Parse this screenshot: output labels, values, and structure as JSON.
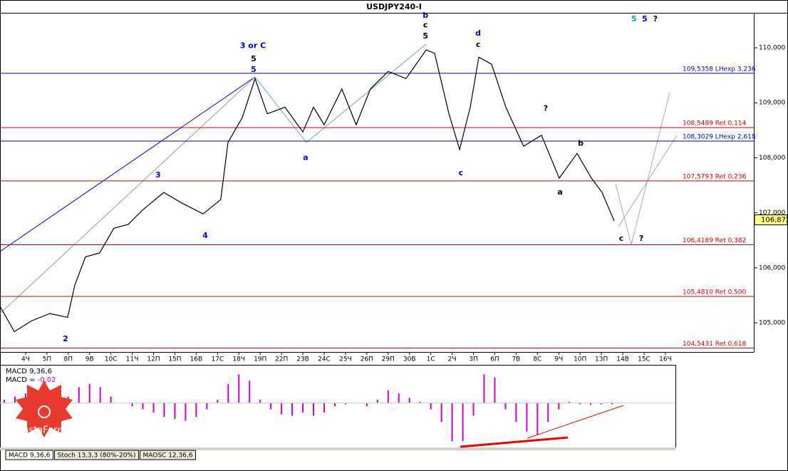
{
  "chart_data": {
    "type": "line",
    "title": "USDJPY240-I",
    "categories": [
      "4Ч",
      "5П",
      "8П",
      "9В",
      "10С",
      "11Ч",
      "12П",
      "15П",
      "16В",
      "17С",
      "18Ч",
      "19П",
      "22П",
      "23В",
      "24С",
      "25Ч",
      "26П",
      "29П",
      "30В",
      "1С",
      "2Ч",
      "3П",
      "6П",
      "7В",
      "8С",
      "9Ч",
      "10П",
      "13П",
      "14В",
      "15С",
      "16Ч"
    ],
    "xlim": [
      -1.2,
      30.47
    ],
    "ylim": [
      104.47,
      110.635
    ],
    "yticks": [
      {
        "value": 105,
        "label": "105,000"
      },
      {
        "value": 106,
        "label": "106,000"
      },
      {
        "value": 107,
        "label": "107,000"
      },
      {
        "value": 108,
        "label": "108,000"
      },
      {
        "value": 109,
        "label": "109,000"
      },
      {
        "value": 110,
        "label": "110,000"
      }
    ],
    "price": {
      "color": "#000000",
      "x": [
        -1.2,
        -0.53,
        0.3,
        1.14,
        1.97,
        2.31,
        2.81,
        3.47,
        4.14,
        4.81,
        5.48,
        6.48,
        7.32,
        8.32,
        9.15,
        9.49,
        10.16,
        10.76,
        11.33,
        12.16,
        13.0,
        13.5,
        14.0,
        14.83,
        15.5,
        16.17,
        17.0,
        17.84,
        18.78,
        19.18,
        19.85,
        20.35,
        20.85,
        21.25,
        21.85,
        22.52,
        23.35,
        24.19,
        25.02,
        25.86,
        26.53,
        27.03,
        27.6
      ],
      "values": [
        105.3,
        104.84,
        105.04,
        105.17,
        105.1,
        105.69,
        106.2,
        106.27,
        106.72,
        106.79,
        107.05,
        107.37,
        107.18,
        106.98,
        107.24,
        108.28,
        108.73,
        109.44,
        108.8,
        108.92,
        108.47,
        108.92,
        108.6,
        109.25,
        108.6,
        109.25,
        109.57,
        109.44,
        109.96,
        109.9,
        108.8,
        108.15,
        108.92,
        109.83,
        109.7,
        108.92,
        108.21,
        108.41,
        107.63,
        108.08,
        107.63,
        107.37,
        106.85
      ]
    },
    "current_price": {
      "value": 106.872,
      "label": "106,872"
    },
    "levels": [
      {
        "value": 109.5358,
        "label": "109,5358 LHexp 3,236",
        "color": "#0000aa"
      },
      {
        "value": 108.5489,
        "label": "108,5489 Ret 0,114",
        "color": "#cc0000"
      },
      {
        "value": 108.3029,
        "label": "108,3029 LHexp 2,618",
        "color": "#0000aa"
      },
      {
        "value": 107.5793,
        "label": "107,5793 Ret 0,236",
        "color": "#cc0000"
      },
      {
        "value": 106.4189,
        "label": "106,4189 Ret 0,382",
        "color": "#cc0000"
      },
      {
        "value": 105.481,
        "label": "105,4810 Ret 0,500",
        "color": "#cc0000"
      },
      {
        "value": 104.5431,
        "label": "104,5431 Ret 0,618",
        "color": "#cc0000"
      }
    ],
    "annotations": [
      {
        "text": "3 or C",
        "x": 10.66,
        "y": 110.03,
        "color": "#0000cc"
      },
      {
        "text": "5",
        "x": 10.69,
        "y": 109.79,
        "color": "#000000"
      },
      {
        "text": "5",
        "x": 10.69,
        "y": 109.6,
        "color": "#0000cc"
      },
      {
        "text": "b",
        "x": 18.75,
        "y": 110.58,
        "color": "#0000cc"
      },
      {
        "text": "c",
        "x": 18.75,
        "y": 110.41,
        "color": "#000000"
      },
      {
        "text": "5",
        "x": 18.75,
        "y": 110.21,
        "color": "#000000"
      },
      {
        "text": "d",
        "x": 21.22,
        "y": 110.26,
        "color": "#0000cc"
      },
      {
        "text": "c",
        "x": 21.22,
        "y": 110.05,
        "color": "#000000"
      },
      {
        "text": "?",
        "x": 24.39,
        "y": 108.89,
        "color": "#000000"
      },
      {
        "text": "a",
        "x": 13.13,
        "y": 108.0,
        "color": "#0000cc"
      },
      {
        "text": "c",
        "x": 20.41,
        "y": 107.72,
        "color": "#0000cc"
      },
      {
        "text": "b",
        "x": 26.03,
        "y": 108.26,
        "color": "#000000"
      },
      {
        "text": "a",
        "x": 25.06,
        "y": 107.37,
        "color": "#000000"
      },
      {
        "text": "c",
        "x": 27.93,
        "y": 106.53,
        "color": "#000000"
      },
      {
        "text": "?",
        "x": 28.87,
        "y": 106.53,
        "color": "#000000"
      },
      {
        "text": "3",
        "x": 6.21,
        "y": 107.68,
        "color": "#0000cc"
      },
      {
        "text": "4",
        "x": 8.42,
        "y": 106.58,
        "color": "#0000cc"
      },
      {
        "text": "2",
        "x": 1.87,
        "y": 104.7,
        "color": "#0000cc"
      },
      {
        "text": "5",
        "x": 28.53,
        "y": 110.52,
        "color": "#1aa0b0"
      },
      {
        "text": "5",
        "x": 29.03,
        "y": 110.52,
        "color": "#0000cc"
      },
      {
        "text": "?",
        "x": 29.53,
        "y": 110.52,
        "color": "#000000"
      }
    ],
    "macd": {
      "label": "MACD 9,36,6",
      "value_label": "MACD = ",
      "value": -0.02,
      "value_text": "-0,02",
      "color": "#cc00cc",
      "ylim": [
        -0.7,
        0.6
      ],
      "x": [
        -1,
        -0.5,
        0,
        0.5,
        1,
        1.5,
        2,
        2.5,
        3,
        3.5,
        4,
        4.5,
        5,
        5.5,
        6,
        6.5,
        7,
        7.5,
        8,
        8.5,
        9,
        9.5,
        10,
        10.5,
        11,
        11.5,
        12,
        12.5,
        13,
        13.5,
        14,
        14.5,
        15,
        15.5,
        16,
        16.5,
        17,
        17.5,
        18,
        18.5,
        19,
        19.5,
        20,
        20.5,
        21,
        21.5,
        22,
        22.5,
        23,
        23.5,
        24,
        24.5,
        25,
        25.5,
        26,
        26.5,
        27,
        27.5
      ],
      "values": [
        0.05,
        0.1,
        0.15,
        0.05,
        0.12,
        0.2,
        0.1,
        0.25,
        0.3,
        0.25,
        0.1,
        0,
        -0.05,
        -0.1,
        -0.15,
        -0.22,
        -0.25,
        -0.28,
        -0.22,
        -0.1,
        0.05,
        0.3,
        0.45,
        0.35,
        0.05,
        -0.1,
        -0.18,
        -0.2,
        -0.15,
        -0.2,
        -0.15,
        -0.05,
        -0.02,
        0,
        -0.05,
        0.05,
        0.2,
        0.15,
        0.08,
        0.02,
        -0.1,
        -0.3,
        -0.6,
        -0.6,
        -0.2,
        0.45,
        0.4,
        -0.1,
        -0.3,
        -0.45,
        -0.5,
        -0.3,
        -0.1,
        0.02,
        -0.02,
        -0.03,
        -0.02,
        -0.02
      ]
    },
    "tabs": [
      "MACD 9,36,6",
      "Stoch 13,3,3 (80%-20%)",
      "MAOSC 12,36,6"
    ],
    "logo": "InstaForex"
  }
}
